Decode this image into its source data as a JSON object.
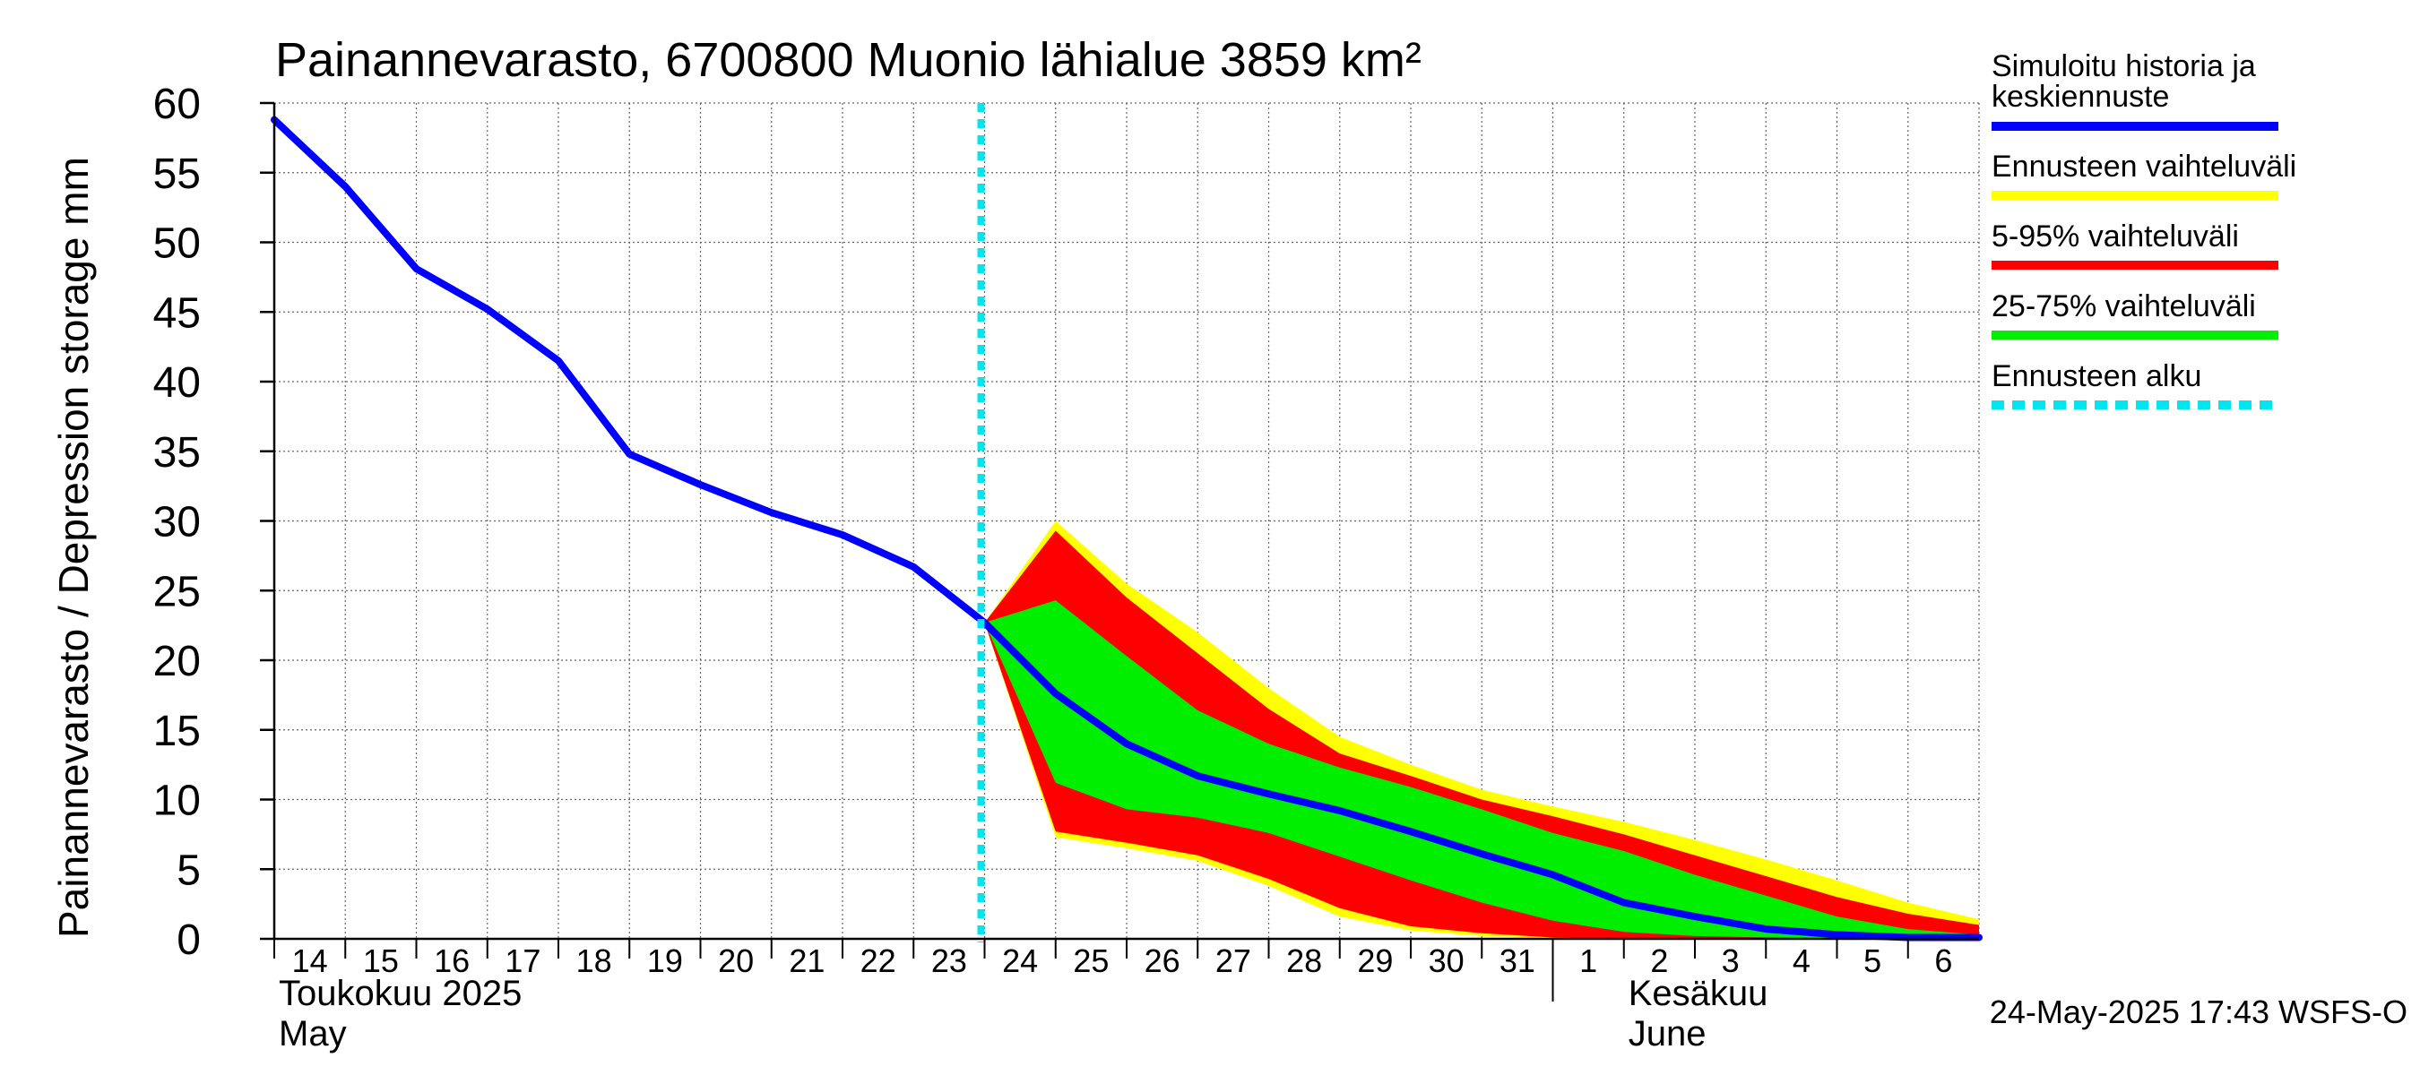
{
  "chart_data": {
    "type": "area",
    "title": "Painannevarasto, 6700800 Muonio lähialue 3859 km²",
    "ylabel": "Painannevarasto / Depression storage    mm",
    "ylim": [
      0,
      60
    ],
    "yticks": [
      "0",
      "5",
      "10",
      "15",
      "20",
      "25",
      "30",
      "35",
      "40",
      "45",
      "50",
      "55",
      "60"
    ],
    "x_range": [
      "2025-05-14",
      "2025-06-07"
    ],
    "xticks": [
      {
        "date": "2025-05-14",
        "label": "14"
      },
      {
        "date": "2025-05-15",
        "label": "15"
      },
      {
        "date": "2025-05-16",
        "label": "16"
      },
      {
        "date": "2025-05-17",
        "label": "17"
      },
      {
        "date": "2025-05-18",
        "label": "18"
      },
      {
        "date": "2025-05-19",
        "label": "19"
      },
      {
        "date": "2025-05-20",
        "label": "20"
      },
      {
        "date": "2025-05-21",
        "label": "21"
      },
      {
        "date": "2025-05-22",
        "label": "22"
      },
      {
        "date": "2025-05-23",
        "label": "23"
      },
      {
        "date": "2025-05-24",
        "label": "24"
      },
      {
        "date": "2025-05-25",
        "label": "25"
      },
      {
        "date": "2025-05-26",
        "label": "26"
      },
      {
        "date": "2025-05-27",
        "label": "27"
      },
      {
        "date": "2025-05-28",
        "label": "28"
      },
      {
        "date": "2025-05-29",
        "label": "29"
      },
      {
        "date": "2025-05-30",
        "label": "30"
      },
      {
        "date": "2025-05-31",
        "label": "31"
      },
      {
        "date": "2025-06-01",
        "label": "1"
      },
      {
        "date": "2025-06-02",
        "label": "2"
      },
      {
        "date": "2025-06-03",
        "label": "3"
      },
      {
        "date": "2025-06-04",
        "label": "4"
      },
      {
        "date": "2025-06-05",
        "label": "5"
      },
      {
        "date": "2025-06-06",
        "label": "6"
      }
    ],
    "month_labels": [
      {
        "date": "2025-05-14",
        "fi": "Toukokuu  2025",
        "en": "May"
      },
      {
        "date": "2025-06-02",
        "fi": "Kesäkuu",
        "en": "June"
      }
    ],
    "month_divider_date": "2025-06-01",
    "grid": true,
    "legend_position": "right",
    "forecast_start": "2025-05-24",
    "history": {
      "x": [
        "2025-05-14",
        "2025-05-15",
        "2025-05-16",
        "2025-05-17",
        "2025-05-18",
        "2025-05-19",
        "2025-05-20",
        "2025-05-21",
        "2025-05-22",
        "2025-05-23",
        "2025-05-24"
      ],
      "y": [
        58.8,
        54.0,
        48.1,
        45.2,
        41.5,
        34.8,
        32.6,
        30.6,
        29.0,
        26.7,
        22.7
      ]
    },
    "forecast_x": [
      "2025-05-24",
      "2025-05-25",
      "2025-05-26",
      "2025-05-27",
      "2025-05-28",
      "2025-05-29",
      "2025-05-30",
      "2025-05-31",
      "2025-06-01",
      "2025-06-02",
      "2025-06-03",
      "2025-06-04",
      "2025-06-05",
      "2025-06-06",
      "2025-06-07"
    ],
    "series": [
      {
        "name": "Ennusteen vaihteluväli",
        "color": "#ffff00",
        "lower": [
          22.7,
          7.3,
          6.5,
          5.6,
          3.8,
          1.6,
          0.6,
          0.2,
          0.0,
          0.0,
          0.0,
          0.0,
          0.0,
          0.0,
          0.0
        ],
        "upper": [
          22.7,
          30.0,
          25.5,
          22.0,
          18.0,
          14.5,
          12.5,
          10.7,
          9.5,
          8.4,
          7.1,
          5.7,
          4.2,
          2.6,
          1.4
        ]
      },
      {
        "name": "5-95% vaihteluväli",
        "color": "#ff0000",
        "lower": [
          22.7,
          7.7,
          6.9,
          6.0,
          4.3,
          2.2,
          0.9,
          0.4,
          0.1,
          0.0,
          0.0,
          0.0,
          0.0,
          0.0,
          0.0
        ],
        "upper": [
          22.7,
          29.3,
          24.5,
          20.5,
          16.5,
          13.3,
          11.7,
          10.0,
          8.8,
          7.5,
          6.0,
          4.5,
          3.0,
          1.8,
          1.0
        ]
      },
      {
        "name": "25-75% vaihteluväli",
        "color": "#00ee00",
        "lower": [
          22.7,
          11.2,
          9.3,
          8.7,
          7.6,
          5.9,
          4.2,
          2.6,
          1.3,
          0.5,
          0.2,
          0.1,
          0.0,
          0.0,
          0.0
        ],
        "upper": [
          22.7,
          24.3,
          20.3,
          16.4,
          14.0,
          12.3,
          10.9,
          9.3,
          7.6,
          6.3,
          4.6,
          3.1,
          1.6,
          0.7,
          0.3
        ]
      },
      {
        "name": "Simuloitu historia ja keskiennuste",
        "color": "#0000ff",
        "values": [
          22.7,
          17.6,
          14.0,
          11.7,
          10.4,
          9.2,
          7.7,
          6.1,
          4.6,
          2.6,
          1.6,
          0.7,
          0.3,
          0.1,
          0.1
        ]
      }
    ],
    "legend": [
      {
        "label": "Simuloitu historia ja\nkeskiennuste",
        "color": "#0000ff",
        "style": "solid"
      },
      {
        "label": "Ennusteen vaihteluväli",
        "color": "#ffff00",
        "style": "solid"
      },
      {
        "label": "5-95% vaihteluväli",
        "color": "#ff0000",
        "style": "solid"
      },
      {
        "label": "25-75% vaihteluväli",
        "color": "#00ee00",
        "style": "solid"
      },
      {
        "label": "Ennusteen alku",
        "color": "#00e5ee",
        "style": "dashed"
      }
    ],
    "footer": "24-May-2025 17:43 WSFS-O"
  }
}
